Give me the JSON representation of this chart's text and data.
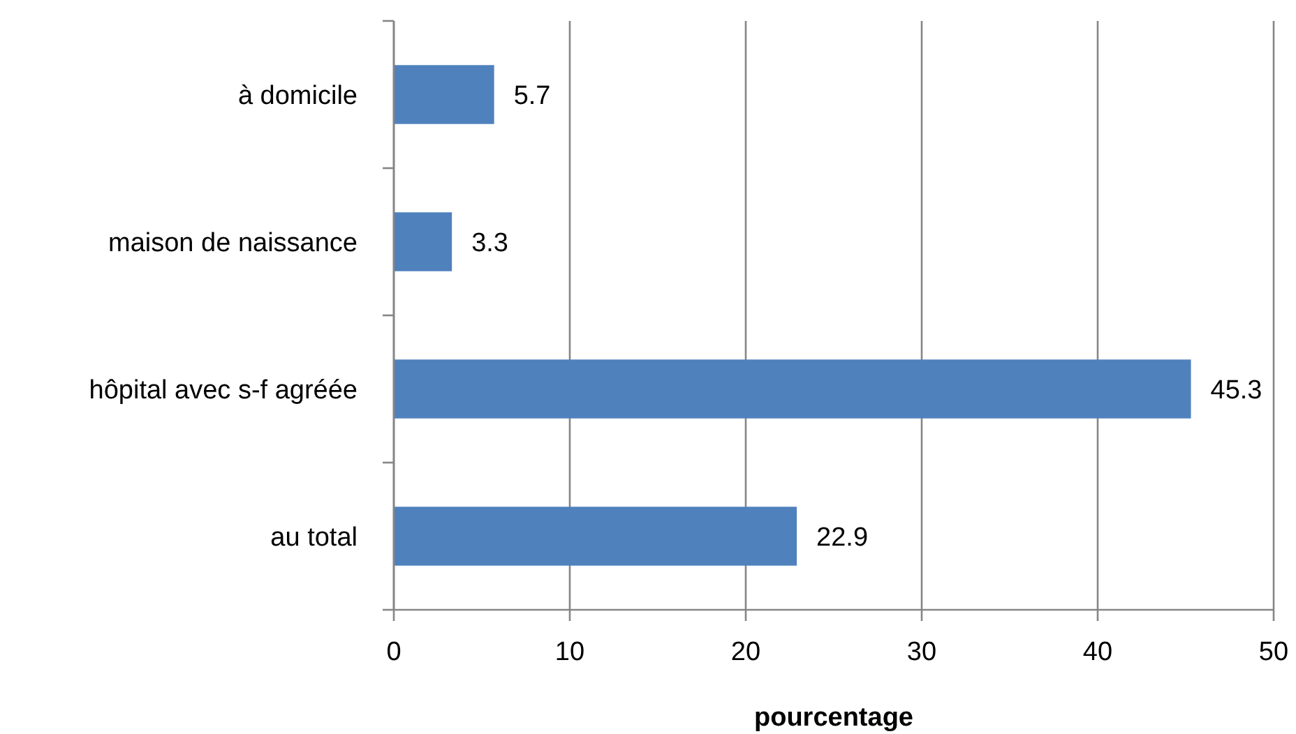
{
  "chart_data": {
    "type": "bar",
    "orientation": "horizontal",
    "categories": [
      "à domicile",
      "maison de naissance",
      "hôpital avec s-f agréée",
      "au total"
    ],
    "values": [
      5.7,
      3.3,
      45.3,
      22.9
    ],
    "color": "#4f81bd",
    "xlim": [
      0,
      50
    ],
    "xticks": [
      0,
      10,
      20,
      30,
      40,
      50
    ],
    "grid": "x",
    "data_labels": true,
    "xlabel": "pourcentage"
  }
}
